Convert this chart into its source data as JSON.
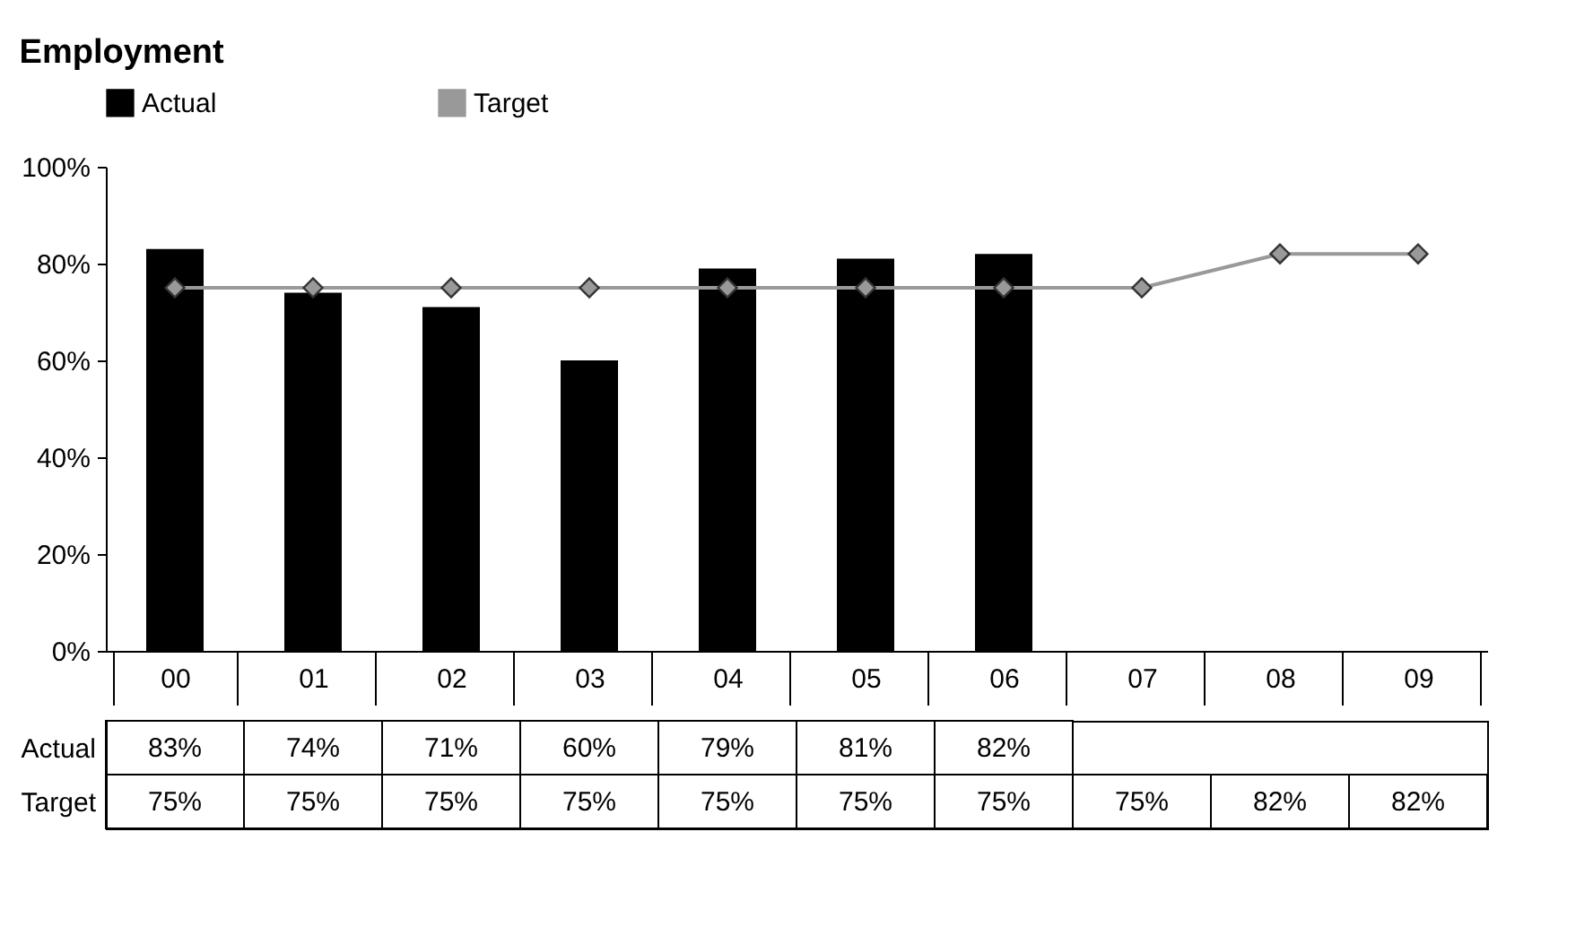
{
  "chart_data": {
    "type": "bar",
    "title": "Employment",
    "categories": [
      "00",
      "01",
      "02",
      "03",
      "04",
      "05",
      "06",
      "07",
      "08",
      "09"
    ],
    "series": [
      {
        "name": "Actual",
        "color": "#000000",
        "values": [
          83,
          74,
          71,
          60,
          79,
          81,
          82,
          null,
          null,
          null
        ],
        "value_labels": [
          "83%",
          "74%",
          "71%",
          "60%",
          "79%",
          "81%",
          "82%",
          null,
          null,
          null
        ]
      },
      {
        "name": "Target",
        "type": "line",
        "color": "#999999",
        "values": [
          75,
          75,
          75,
          75,
          75,
          75,
          75,
          75,
          82,
          82
        ],
        "value_labels": [
          "75%",
          "75%",
          "75%",
          "75%",
          "75%",
          "75%",
          "75%",
          "75%",
          "82%",
          "82%"
        ]
      }
    ],
    "ylim": [
      0,
      100
    ],
    "yticks": [
      {
        "value": 0,
        "label": "0%"
      },
      {
        "value": 20,
        "label": "20%"
      },
      {
        "value": 40,
        "label": "40%"
      },
      {
        "value": 60,
        "label": "60%"
      },
      {
        "value": 80,
        "label": "80%"
      },
      {
        "value": 100,
        "label": "100%"
      }
    ],
    "grid": false,
    "legend": "top",
    "marker": "diamond",
    "line_style": "solid"
  }
}
